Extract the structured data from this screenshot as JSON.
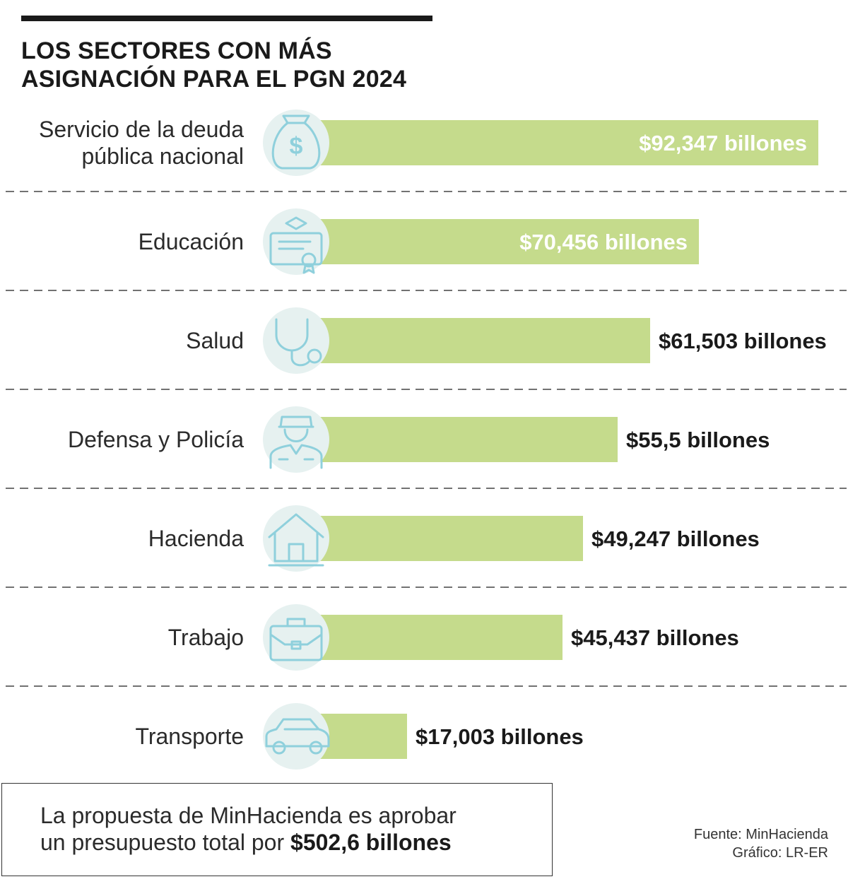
{
  "title": {
    "line1": "LOS SECTORES CON MÁS",
    "line2": "ASIGNACIÓN PARA EL PGN 2024"
  },
  "chart_data": {
    "type": "bar",
    "orientation": "horizontal",
    "unit": "billones",
    "categories": [
      [
        "Servicio de la deuda",
        "pública nacional"
      ],
      [
        "Educación"
      ],
      [
        "Salud"
      ],
      [
        "Defensa y Policía"
      ],
      [
        "Hacienda"
      ],
      [
        "Trabajo"
      ],
      [
        "Transporte"
      ]
    ],
    "values": [
      92.347,
      70.456,
      61.503,
      55.5,
      49.247,
      45.437,
      17.003
    ],
    "value_labels": [
      "$92,347 billones",
      "$70,456 billones",
      "$61,503 billones",
      "$55,5 billones",
      "$49,247 billones",
      "$45,437 billones",
      "$17,003 billones"
    ],
    "icons": [
      "money-bag-icon",
      "diploma-icon",
      "stethoscope-icon",
      "police-officer-icon",
      "house-icon",
      "briefcase-icon",
      "car-icon"
    ],
    "xlim": [
      0,
      92.347
    ],
    "grid": false,
    "legend": "none",
    "colors": {
      "bar": "#c5db8c",
      "icon_circle": "#e6f1f0",
      "icon_stroke": "#8fd0dc",
      "value_inside": "#ffffff",
      "value_outside": "#1a1a1a",
      "divider": "#444444"
    }
  },
  "note": {
    "line1": "La propuesta de MinHacienda es aprobar",
    "line2_prefix": "un presupuesto total por ",
    "line2_bold": "$502,6 billones"
  },
  "credits": {
    "source": "Fuente: MinHacienda",
    "graphic": "Gráfico: LR-ER"
  }
}
